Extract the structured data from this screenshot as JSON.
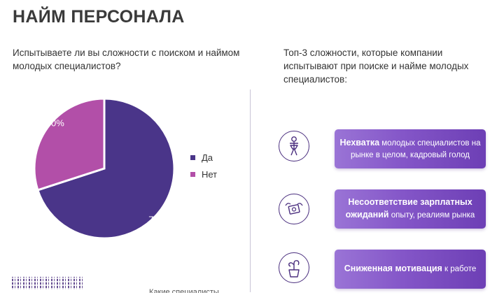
{
  "title": "НАЙМ ПЕРСОНАЛА",
  "question": "Испытываете ли вы сложности с поиском и наймом молодых специалистов?",
  "top3_title": "Топ-3 сложности, которые компании испытывают при поиске и найме молодых специалистов:",
  "colors": {
    "yes": "#4a3589",
    "no": "#b24fa8",
    "card_gradient_end": "#6d3fb5"
  },
  "chart_data": {
    "type": "pie",
    "categories": [
      "Да",
      "Нет"
    ],
    "values": [
      70,
      30
    ],
    "labels": [
      "70%",
      "30%"
    ],
    "legend_position": "right"
  },
  "difficulties": [
    {
      "icon": "person-icon",
      "bold": "Нехватка",
      "rest": " молодых специалистов на рынке в целом, кадровый голод"
    },
    {
      "icon": "flying-money-icon",
      "bold": "Несоответствие зарплатных ожиданий",
      "rest": " опыту, реалиям рынка"
    },
    {
      "icon": "wilted-plant-icon",
      "bold": "Сниженная мотивация",
      "rest": " к работе"
    }
  ],
  "footer_cut_text": "Какие специалисты"
}
